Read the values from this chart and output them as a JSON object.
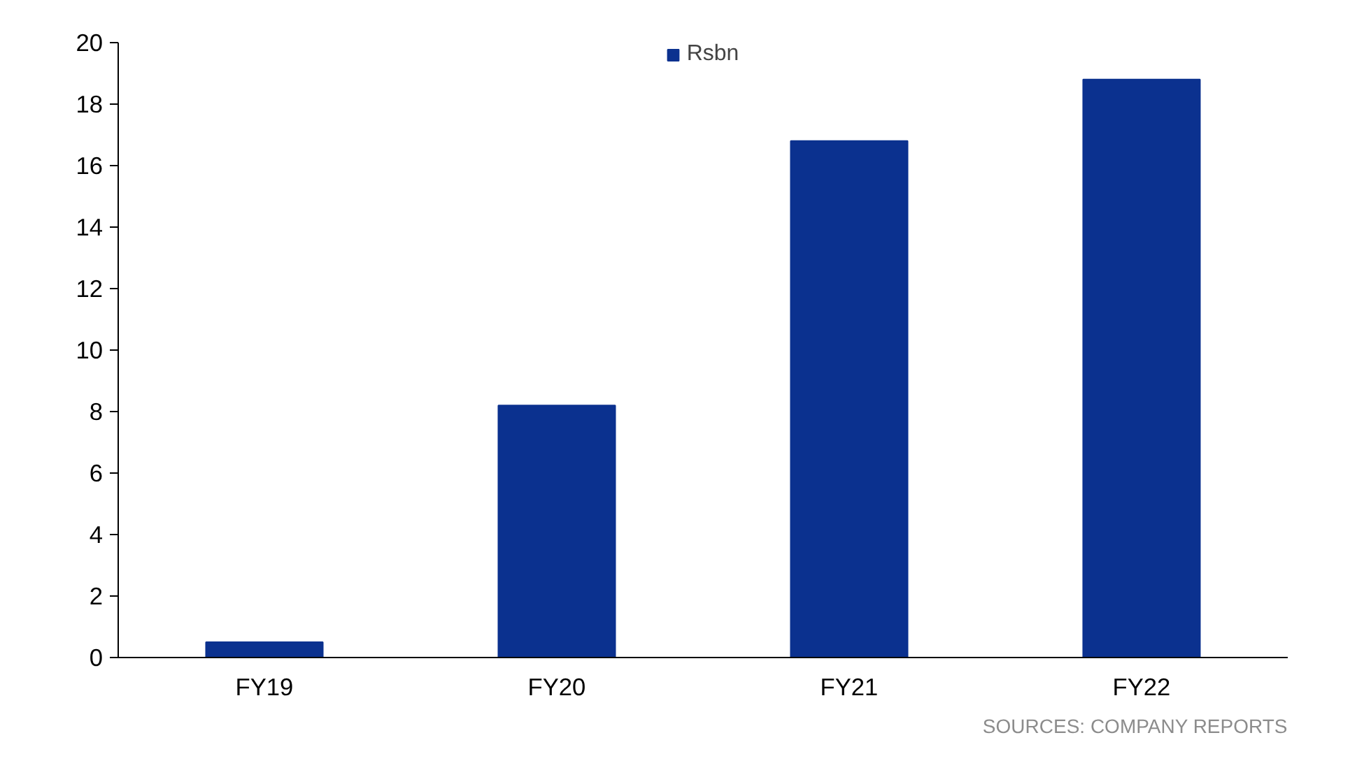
{
  "chart_data": {
    "type": "bar",
    "categories": [
      "FY19",
      "FY20",
      "FY21",
      "FY22"
    ],
    "series": [
      {
        "name": "Rsbn",
        "color": "#0b318f",
        "values": [
          0.5,
          8.2,
          16.8,
          18.8
        ]
      }
    ],
    "ylim": [
      0,
      20
    ],
    "yticks": [
      0,
      2,
      4,
      6,
      8,
      10,
      12,
      14,
      16,
      18,
      20
    ],
    "grid": false,
    "legend": "top",
    "annotations": [
      "SOURCES: COMPANY REPORTS"
    ]
  }
}
